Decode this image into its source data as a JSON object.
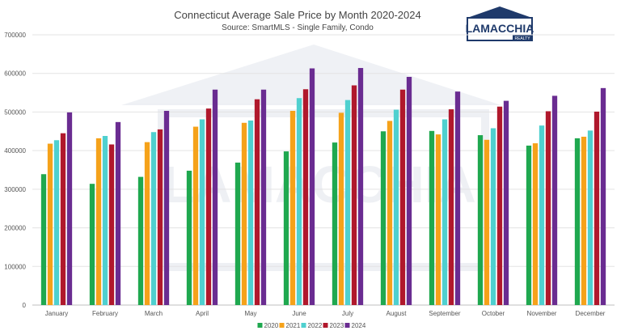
{
  "logo": {
    "name": "LAMACCHIA",
    "tagline": "REALTY",
    "color": "#1f3a6b"
  },
  "chart_data": {
    "type": "bar",
    "title": "Connecticut Average Sale Price by Month 2020-2024",
    "subtitle": "Source: SmartMLS - Single Family, Condo",
    "xlabel": "",
    "ylabel": "",
    "ylim": [
      0,
      700000
    ],
    "yticks": [
      "0",
      "100000",
      "200000",
      "300000",
      "400000",
      "500000",
      "600000",
      "700000"
    ],
    "grid": true,
    "legend_position": "bottom",
    "categories": [
      "January",
      "February",
      "March",
      "April",
      "May",
      "June",
      "July",
      "August",
      "September",
      "October",
      "November",
      "December"
    ],
    "series": [
      {
        "name": "2020",
        "color": "#1fa84f",
        "values": [
          339000,
          314000,
          332000,
          348000,
          369000,
          398000,
          421000,
          450000,
          451000,
          440000,
          413000,
          432000
        ]
      },
      {
        "name": "2021",
        "color": "#f5a21a",
        "values": [
          418000,
          432000,
          422000,
          462000,
          472000,
          503000,
          498000,
          477000,
          442000,
          428000,
          419000,
          436000
        ]
      },
      {
        "name": "2022",
        "color": "#4fd0cf",
        "values": [
          427000,
          438000,
          448000,
          481000,
          478000,
          536000,
          531000,
          506000,
          481000,
          458000,
          465000,
          452000
        ]
      },
      {
        "name": "2023",
        "color": "#b0182c",
        "values": [
          445000,
          416000,
          455000,
          509000,
          533000,
          559000,
          569000,
          558000,
          507000,
          514000,
          502000,
          501000
        ]
      },
      {
        "name": "2024",
        "color": "#6a2c91",
        "values": [
          499000,
          474000,
          503000,
          558000,
          558000,
          613000,
          614000,
          591000,
          553000,
          529000,
          542000,
          562000
        ]
      }
    ]
  }
}
